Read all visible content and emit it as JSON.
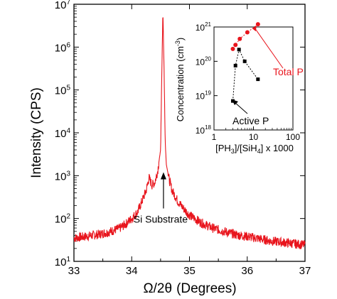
{
  "chart_data": [
    {
      "type": "line",
      "x_label_prefix": "Ω/2θ",
      "x_label_unit": "(Degrees)",
      "ylabel": "Intensity (CPS)",
      "xlim": [
        33,
        37
      ],
      "ylim": [
        10,
        10000000
      ],
      "yscale": "log",
      "grid": false,
      "x_ticks": [
        33,
        34,
        35,
        36,
        37
      ],
      "y_ticks": [
        {
          "base": "10",
          "exp": "1"
        },
        {
          "base": "10",
          "exp": "2"
        },
        {
          "base": "10",
          "exp": "3"
        },
        {
          "base": "10",
          "exp": "4"
        },
        {
          "base": "10",
          "exp": "5"
        },
        {
          "base": "10",
          "exp": "6"
        },
        {
          "base": "10",
          "exp": "7"
        }
      ],
      "series": [
        {
          "color": "#e8141c",
          "x": [
            33.0,
            33.2,
            33.4,
            33.6,
            33.8,
            33.9,
            34.0,
            34.1,
            34.2,
            34.25,
            34.3,
            34.35,
            34.4,
            34.45,
            34.5,
            34.52,
            34.54,
            34.56,
            34.58,
            34.6,
            34.65,
            34.7,
            34.8,
            34.9,
            35.0,
            35.2,
            35.4,
            35.6,
            35.8,
            36.0,
            36.2,
            36.4,
            36.6,
            36.8,
            37.0
          ],
          "values": [
            35,
            38,
            42,
            48,
            60,
            75,
            100,
            140,
            300,
            450,
            900,
            600,
            700,
            1300,
            4000,
            200000,
            7000000,
            300000,
            6000,
            1800,
            800,
            450,
            250,
            170,
            120,
            80,
            60,
            50,
            42,
            38,
            34,
            30,
            28,
            26,
            24
          ]
        }
      ],
      "annotations": [
        {
          "text": "Si Substrate",
          "x": 34.55,
          "y": 80,
          "arrow_to_y": 1200
        }
      ]
    },
    {
      "type": "scatter",
      "xlabel_parts": [
        "[PH",
        "3",
        "]/[SiH",
        "4",
        "] x 1000"
      ],
      "ylabel_parts": [
        "Concentration (cm",
        "-3",
        ")"
      ],
      "xlim": [
        1,
        100
      ],
      "ylim": [
        1e+18,
        1e+21
      ],
      "xscale": "log",
      "yscale": "log",
      "x_ticks": [
        "1",
        "10",
        "100"
      ],
      "y_ticks": [
        {
          "base": "10",
          "exp": "18"
        },
        {
          "base": "10",
          "exp": "19"
        },
        {
          "base": "10",
          "exp": "20"
        },
        {
          "base": "10",
          "exp": "21"
        }
      ],
      "series": [
        {
          "name": "Total P",
          "color": "#e8141c",
          "marker": "circle",
          "x": [
            3.0,
            3.5,
            4.5,
            7.0,
            13.0
          ],
          "values": [
            2.3e+20,
            3e+20,
            4.5e+20,
            7e+20,
            1.2e+21
          ]
        },
        {
          "name": "Active P",
          "color": "#000000",
          "marker": "square",
          "x": [
            3.0,
            3.5,
            4.3,
            6.0,
            13.0
          ],
          "values": [
            7e+18,
            7.5e+19,
            2.2e+20,
            1e+20,
            3e+19
          ]
        }
      ]
    }
  ]
}
